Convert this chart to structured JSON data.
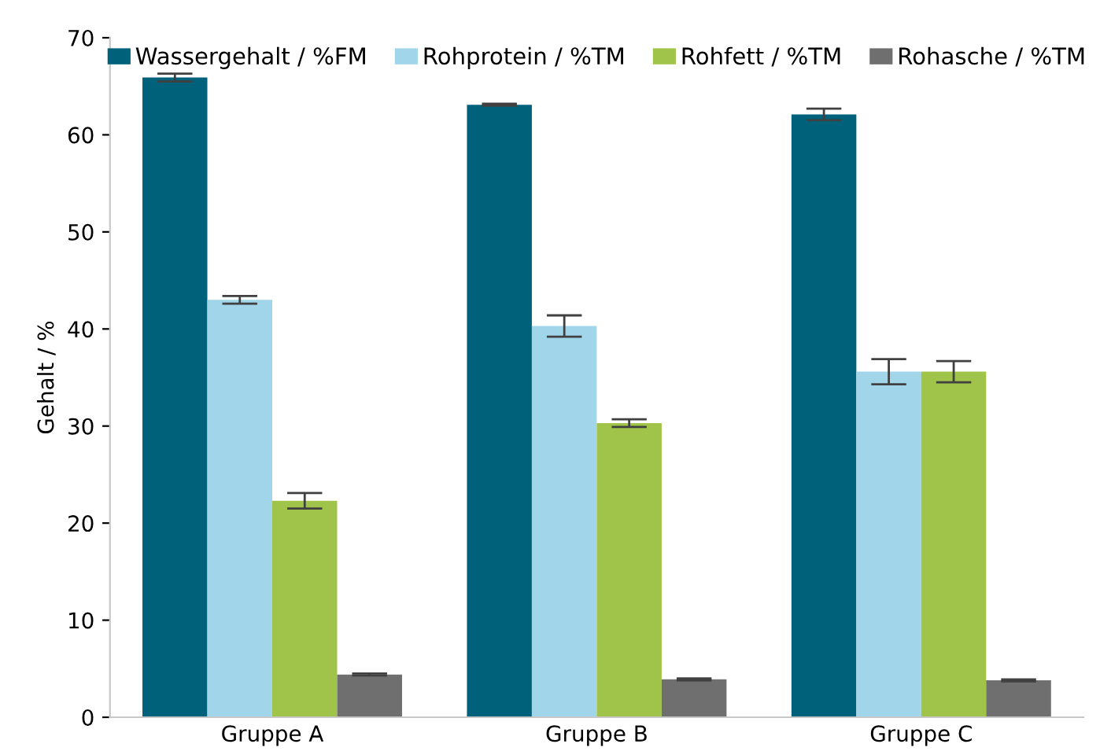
{
  "chart_data": {
    "type": "bar",
    "ylabel": "Gehalt / %",
    "categories": [
      "Gruppe A",
      "Gruppe B",
      "Gruppe C"
    ],
    "series": [
      {
        "name": "Wassergehalt / %FM",
        "color": "#00617a",
        "values": [
          65.9,
          63.1,
          62.1
        ],
        "errors": [
          0.4,
          0.1,
          0.6
        ]
      },
      {
        "name": "Rohprotein / %TM",
        "color": "#a1d5ea",
        "values": [
          43.0,
          40.3,
          35.6
        ],
        "errors": [
          0.4,
          1.1,
          1.3
        ]
      },
      {
        "name": "Rohfett / %TM",
        "color": "#a0c44a",
        "values": [
          22.3,
          30.3,
          35.6
        ],
        "errors": [
          0.8,
          0.4,
          1.1
        ]
      },
      {
        "name": "Rohasche / %TM",
        "color": "#6f6f6f",
        "values": [
          4.4,
          3.9,
          3.8
        ],
        "errors": [
          0.1,
          0.1,
          0.1
        ]
      }
    ],
    "ylim": [
      0,
      70
    ],
    "yticks": [
      0,
      10,
      20,
      30,
      40,
      50,
      60,
      70
    ],
    "grid": false,
    "legend": "top"
  }
}
